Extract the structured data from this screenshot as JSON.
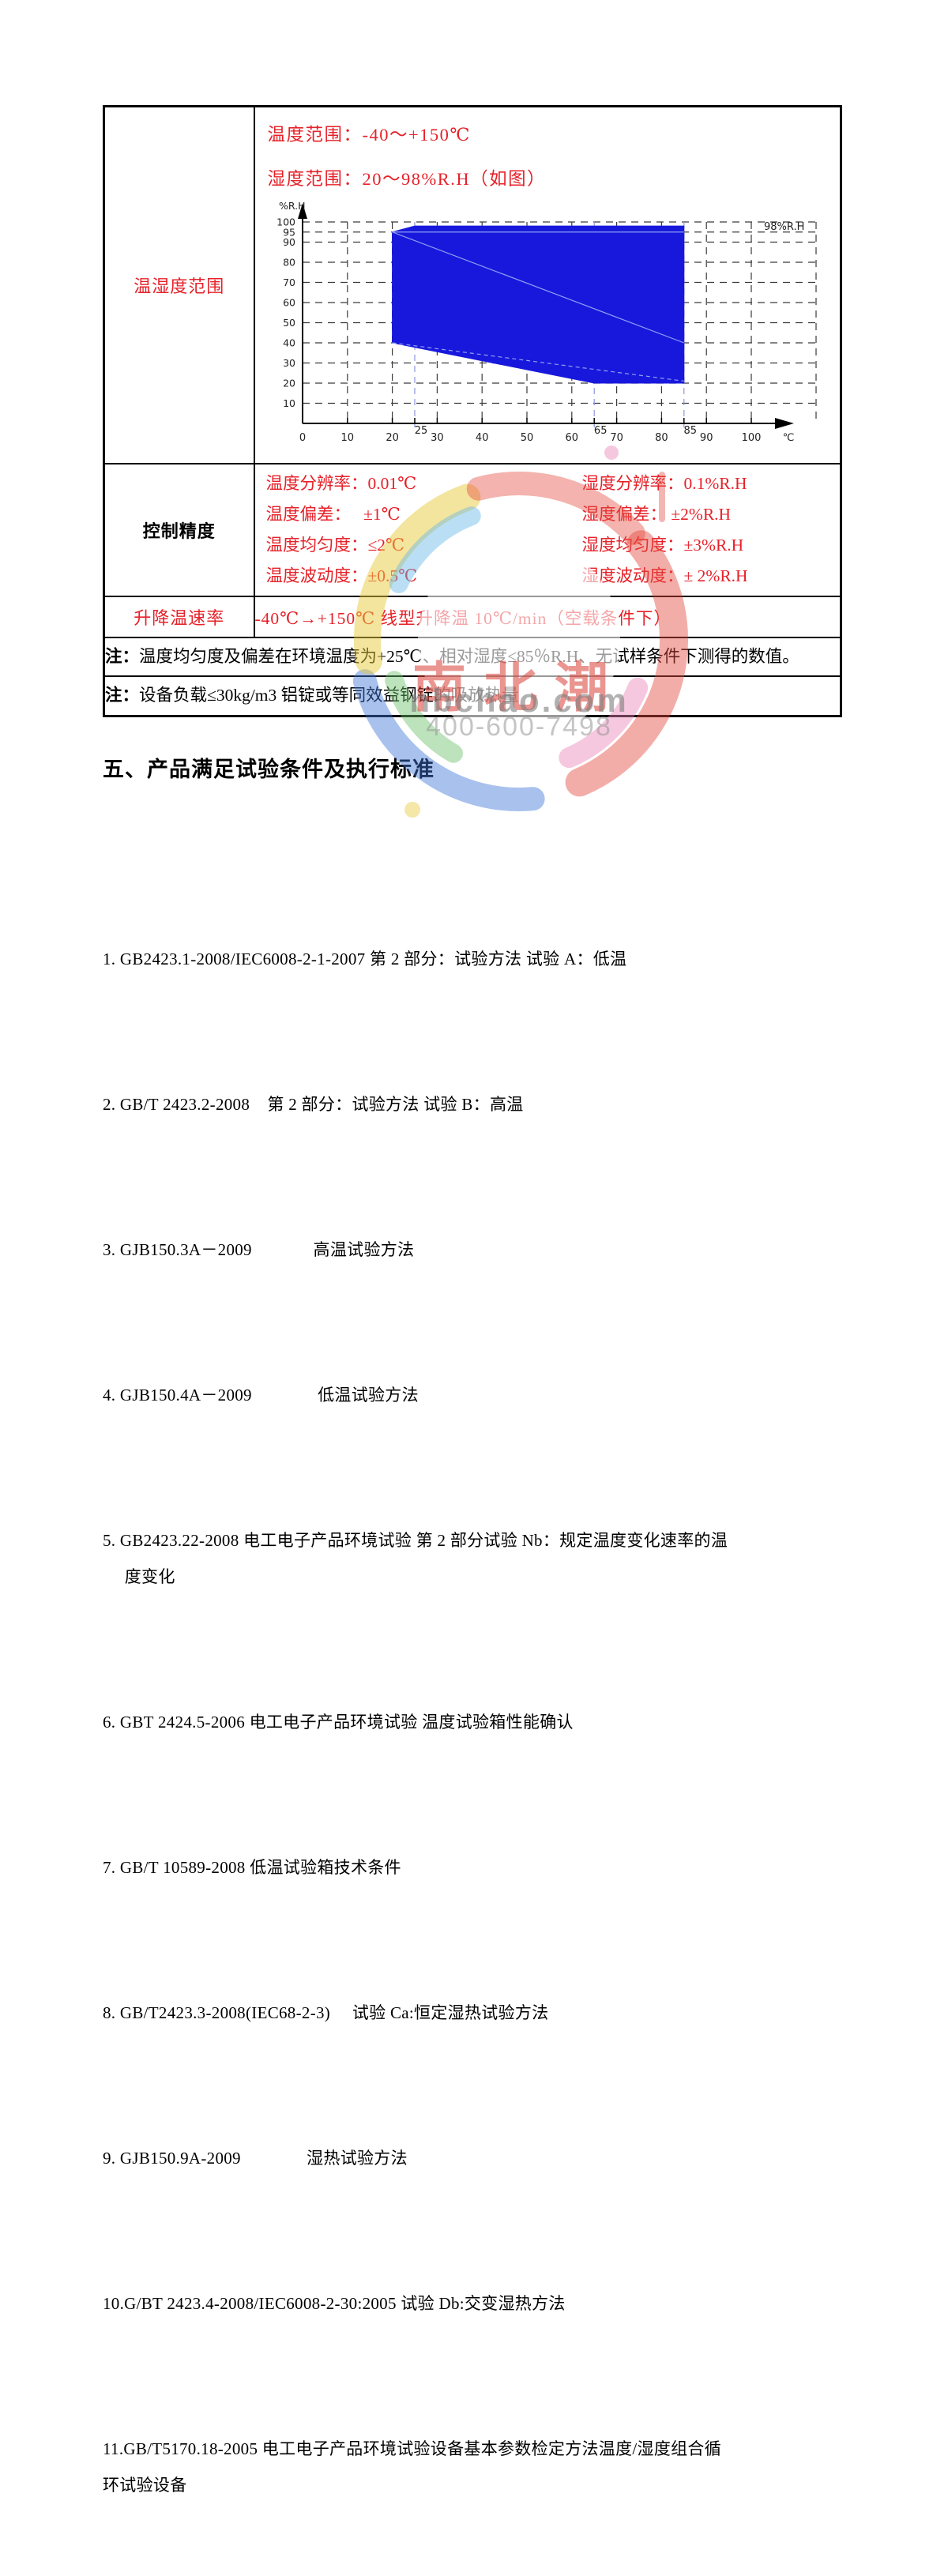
{
  "table": {
    "row1": {
      "label": "温湿度范围",
      "temp_range": "温度范围：-40～+150℃",
      "humidity_range": "湿度范围：20～98%R.H（如图）"
    },
    "row2": {
      "label": "控制精度",
      "pairs": [
        {
          "left": "温度分辨率：0.01℃",
          "right": "湿度分辨率：0.1%R.H"
        },
        {
          "left": "温度偏差：   ±1℃",
          "right": "湿度偏差： ±2%R.H"
        },
        {
          "left": "温度均匀度：≤2℃",
          "right": "湿度均匀度：±3%R.H"
        },
        {
          "left": "温度波动度：±0.5℃",
          "right": "湿度波动度：± 2%R.H"
        }
      ]
    },
    "row3": {
      "label": "升降温速率",
      "value": "-40℃→+150℃ 线型升降温 10℃/min（空载条件下）"
    },
    "notes": [
      {
        "prefix": "注：",
        "text": "温度均匀度及偏差在环境温度为+25℃、相对湿度≤85％R.H、无试样条件下测得的数值。"
      },
      {
        "prefix": "注：",
        "text": "设备负载≤30kg/m3 铝锭或等同效益钢锭的吸放热量"
      }
    ]
  },
  "section": {
    "heading": "五、产品满足试验条件及执行标准",
    "standards": [
      {
        "text": "1. GB2423.1-2008/IEC6008-2-1-2007 第 2 部分：试验方法 试验 A：低温"
      },
      {
        "text": "2. GB/T 2423.2-2008    第 2 部分：试验方法 试验 B：高温"
      },
      {
        "text": "3. GJB150.3A－2009              高温试验方法"
      },
      {
        "text": "4. GJB150.4A－2009               低温试验方法"
      },
      {
        "text": "5. GB2423.22-2008 电工电子产品环境试验 第 2 部分试验 Nb：规定温度变化速率的温\n     度变化"
      },
      {
        "text": "6. GBT 2424.5-2006 电工电子产品环境试验 温度试验箱性能确认"
      },
      {
        "text": "7. GB/T 10589-2008 低温试验箱技术条件"
      },
      {
        "text": "8. GB/T2423.3-2008(IEC68-2-3)     试验 Ca:恒定湿热试验方法"
      },
      {
        "text": "9. GJB150.9A-2009               湿热试验方法"
      },
      {
        "text": "10.G/BT 2423.4-2008/IEC6008-2-30:2005 试验 Db:交变湿热方法"
      },
      {
        "text": "11.GB/T5170.18-2005 电工电子产品环境试验设备基本参数检定方法温度/湿度组合循\n环试验设备"
      }
    ]
  },
  "watermark": {
    "cjk": "南北潮",
    "domain": "nbchao.com",
    "phone": "400-600-7498"
  },
  "chart_data": {
    "type": "area",
    "title": "",
    "xlabel": "℃",
    "ylabel": "%R.H",
    "x_ticks": [
      0,
      10,
      20,
      30,
      40,
      50,
      60,
      70,
      80,
      90,
      100
    ],
    "x_special_ticks": [
      25,
      65,
      85
    ],
    "y_ticks": [
      10,
      20,
      30,
      40,
      50,
      60,
      70,
      80,
      90,
      95,
      100
    ],
    "xlim": [
      0,
      100
    ],
    "ylim": [
      0,
      100
    ],
    "annotation": "98%R.H",
    "polygon": [
      [
        20,
        40
      ],
      [
        20,
        95
      ],
      [
        25,
        98
      ],
      [
        85,
        98
      ],
      [
        85,
        20
      ],
      [
        65,
        20
      ]
    ],
    "inner_lines": [
      {
        "from": [
          20,
          95
        ],
        "to": [
          85,
          95
        ]
      },
      {
        "from": [
          20,
          95
        ],
        "to": [
          85,
          40
        ]
      },
      {
        "from": [
          20,
          40
        ],
        "to": [
          85,
          21
        ],
        "dashed": true
      }
    ],
    "fill_color": "#1818dd",
    "inner_line_color": "#8fa0f2",
    "special_grid_color": "#8d96de",
    "grid_color": "#3a3a3a",
    "text_red": "#e62129"
  }
}
